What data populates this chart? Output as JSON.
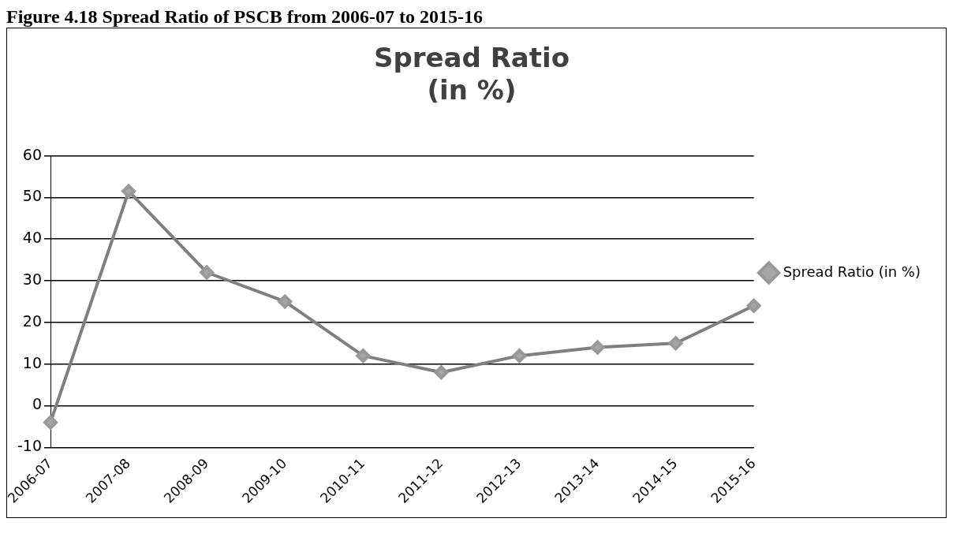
{
  "chart_data": {
    "type": "line",
    "title": "Spread Ratio\n(in %)",
    "annotations": [
      "Figure 4.18 Spread Ratio of PSCB from 2006-07 to 2015-16"
    ],
    "categories": [
      "2006-07",
      "2007-08",
      "2008-09",
      "2009-10",
      "2010-11",
      "2011-12",
      "2012-13",
      "2013-14",
      "2014-15",
      "2015-16"
    ],
    "series": [
      {
        "name": "Spread Ratio\n(in %)",
        "color": "#7f7f7f",
        "values": [
          -4,
          51.5,
          32,
          25,
          12,
          8,
          12,
          14,
          15,
          24
        ]
      }
    ],
    "ylim": [
      -10,
      60
    ],
    "yticks": [
      -10,
      0,
      10,
      20,
      30,
      40,
      50,
      60
    ],
    "grid": "y",
    "legend": "right",
    "marker": "diamond",
    "line_style": "solid"
  }
}
